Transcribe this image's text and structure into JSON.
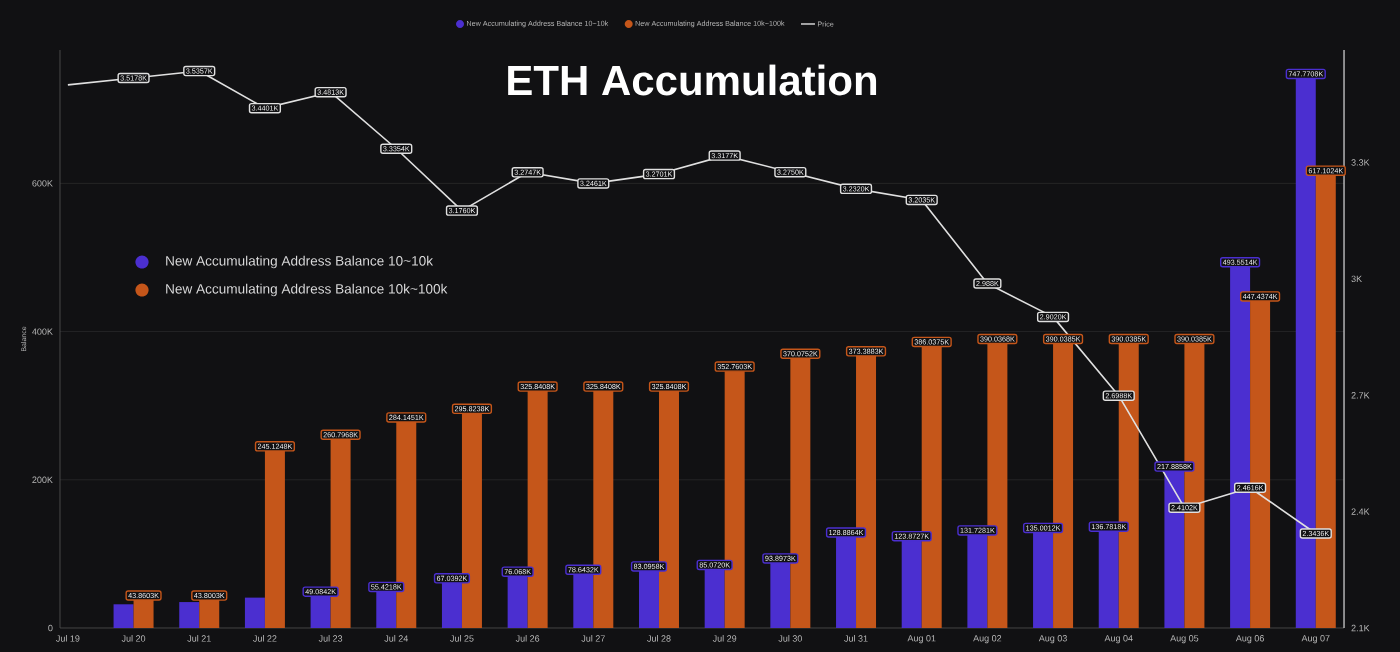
{
  "chart_data": {
    "type": "bar",
    "title": "ETH Accumulation",
    "ylabel": "Balance",
    "categories": [
      "Jul 19",
      "Jul 20",
      "Jul 21",
      "Jul 22",
      "Jul 23",
      "Jul 24",
      "Jul 25",
      "Jul 26",
      "Jul 27",
      "Jul 28",
      "Jul 29",
      "Jul 30",
      "Jul 31",
      "Aug 01",
      "Aug 02",
      "Aug 03",
      "Aug 04",
      "Aug 05",
      "Aug 06",
      "Aug 07"
    ],
    "series": [
      {
        "name": "New Accumulating Address Balance 10~10k",
        "color": "#4b2fd0",
        "values": [
          null,
          32000,
          35000,
          41000,
          49084.2,
          55421.8,
          67039.2,
          76068,
          78643.2,
          83095.8,
          85072.0,
          93897.3,
          128886.4,
          123872.7,
          131728.1,
          135001.2,
          136781.8,
          217885.8,
          493551.4,
          747770.8
        ],
        "value_labels": [
          null,
          null,
          null,
          null,
          "49.0842K",
          "55.4218K",
          "67.0392K",
          "76.068K",
          "78.6432K",
          "83.0958K",
          "85.0720K",
          "93.8973K",
          "128.8864K",
          "123.8727K",
          "131.7281K",
          "135.0012K",
          "136.7818K",
          "217.8858K",
          "493.5514K",
          "747.7708K"
        ]
      },
      {
        "name": "New Accumulating Address Balance 10k~100k",
        "color": "#c5561a",
        "values": [
          null,
          43860.3,
          43800.3,
          245124.8,
          260796.8,
          284145.1,
          295823.8,
          325840.8,
          325840.8,
          325840.8,
          352760.3,
          370075.2,
          373388.3,
          386037.5,
          390036.8,
          390038.5,
          390038.5,
          390038.5,
          447437.4,
          617102.4
        ],
        "value_labels": [
          null,
          "43.8603K",
          "43.8003K",
          "245.1248K",
          "260.7968K",
          "284.1451K",
          "295.8238K",
          "325.8408K",
          "325.8408K",
          "325.8408K",
          "352.7603K",
          "370.0752K",
          "373.3883K",
          "386.0375K",
          "390.0368K",
          "390.0385K",
          "390.0385K",
          "390.0385K",
          "447.4374K",
          "617.1024K"
        ]
      },
      {
        "name": "Price",
        "type": "line",
        "axis": "y2",
        "color": "#e0e0e0",
        "values": [
          3500,
          3517.8,
          3535.7,
          3440.1,
          3481.3,
          3335.4,
          3176.0,
          3274.7,
          3246.1,
          3270.1,
          3317.7,
          3275.0,
          3232.0,
          3203.5,
          2988.0,
          2902.0,
          2698.8,
          2410.2,
          2461.6,
          2343.6
        ],
        "value_labels": [
          null,
          "3.5178K",
          "3.5357K",
          "3.4401K",
          "3.4813K",
          "3.3354K",
          "3.1760K",
          "3.2747K",
          "3.2461K",
          "3.2701K",
          "3.3177K",
          "3.2750K",
          "3.2320K",
          "3.2035K",
          "2.988K",
          "2.9020K",
          "2.6988K",
          "2.4102K",
          "2.4616K",
          "2.3436K"
        ]
      }
    ],
    "ylim": [
      0,
      780000
    ],
    "yticks": [
      0,
      {
        "value": 200000,
        "label": "200K"
      },
      {
        "value": 400000,
        "label": "400K"
      },
      {
        "value": 600000,
        "label": "600K"
      }
    ],
    "y2lim": [
      2100,
      3590
    ],
    "y2ticks": [
      {
        "value": 2100,
        "label": "2.1K"
      },
      {
        "value": 2400,
        "label": "2.4K"
      },
      {
        "value": 2700,
        "label": "2.7K"
      },
      {
        "value": 3000,
        "label": "3K"
      },
      {
        "value": 3300,
        "label": "3.3K"
      }
    ],
    "grid": "y",
    "legend": "top",
    "marker": "none"
  }
}
